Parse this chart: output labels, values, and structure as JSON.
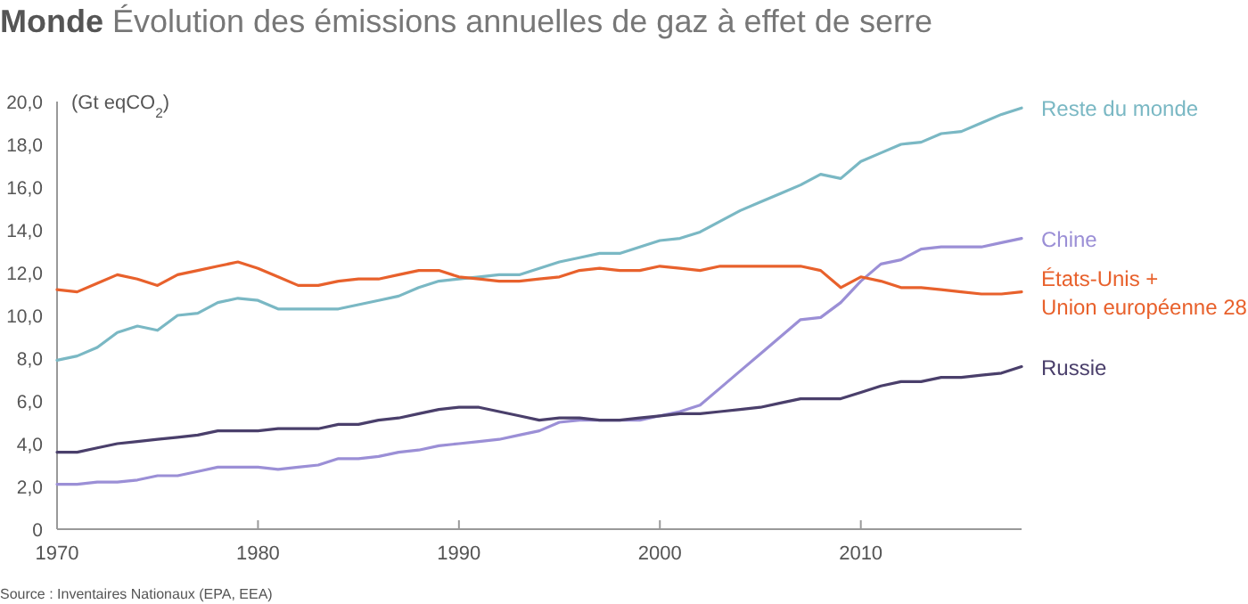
{
  "chart_data": {
    "type": "line",
    "title": "Monde Évolution des émissions annuelles de gaz à effet de serre",
    "ylabel": "(Gt eqCO$_{2}$)",
    "x": [
      1970,
      1971,
      1972,
      1973,
      1974,
      1975,
      1976,
      1977,
      1978,
      1979,
      1980,
      1981,
      1982,
      1983,
      1984,
      1985,
      1986,
      1987,
      1988,
      1989,
      1990,
      1991,
      1992,
      1993,
      1994,
      1995,
      1996,
      1997,
      1998,
      1999,
      2000,
      2001,
      2002,
      2003,
      2004,
      2005,
      2006,
      2007,
      2008,
      2009,
      2010,
      2011,
      2012,
      2013,
      2014,
      2015,
      2016,
      2017,
      2018
    ],
    "series": [
      {
        "name": "Reste du monde",
        "color": "#7ab8c4",
        "values": [
          7.9,
          8.1,
          8.5,
          9.2,
          9.5,
          9.3,
          10.0,
          10.1,
          10.6,
          10.8,
          10.7,
          10.3,
          10.3,
          10.3,
          10.3,
          10.5,
          10.7,
          10.9,
          11.3,
          11.6,
          11.7,
          11.8,
          11.9,
          11.9,
          12.2,
          12.5,
          12.7,
          12.9,
          12.9,
          13.2,
          13.5,
          13.6,
          13.9,
          14.4,
          14.9,
          15.3,
          15.7,
          16.1,
          16.6,
          16.4,
          17.2,
          17.6,
          18.0,
          18.1,
          18.5,
          18.6,
          19.0,
          19.4,
          19.7
        ]
      },
      {
        "name": "Chine",
        "color": "#9b8fd6",
        "values": [
          2.1,
          2.1,
          2.2,
          2.2,
          2.3,
          2.5,
          2.5,
          2.7,
          2.9,
          2.9,
          2.9,
          2.8,
          2.9,
          3.0,
          3.3,
          3.3,
          3.4,
          3.6,
          3.7,
          3.9,
          4.0,
          4.1,
          4.2,
          4.4,
          4.6,
          5.0,
          5.1,
          5.1,
          5.1,
          5.1,
          5.3,
          5.5,
          5.8,
          6.6,
          7.4,
          8.2,
          9.0,
          9.8,
          9.9,
          10.6,
          11.6,
          12.4,
          12.6,
          13.1,
          13.2,
          13.2,
          13.2,
          13.4,
          13.6
        ]
      },
      {
        "name": "États-Unis + Union européenne 28",
        "color": "#e8612c",
        "values": [
          11.2,
          11.1,
          11.5,
          11.9,
          11.7,
          11.4,
          11.9,
          12.1,
          12.3,
          12.5,
          12.2,
          11.8,
          11.4,
          11.4,
          11.6,
          11.7,
          11.7,
          11.9,
          12.1,
          12.1,
          11.8,
          11.7,
          11.6,
          11.6,
          11.7,
          11.8,
          12.1,
          12.2,
          12.1,
          12.1,
          12.3,
          12.2,
          12.1,
          12.3,
          12.3,
          12.3,
          12.3,
          12.3,
          12.1,
          11.3,
          11.8,
          11.6,
          11.3,
          11.3,
          11.2,
          11.1,
          11.0,
          11.0,
          11.1
        ]
      },
      {
        "name": "Russie",
        "color": "#4a3f6b",
        "values": [
          3.6,
          3.6,
          3.8,
          4.0,
          4.1,
          4.2,
          4.3,
          4.4,
          4.6,
          4.6,
          4.6,
          4.7,
          4.7,
          4.7,
          4.9,
          4.9,
          5.1,
          5.2,
          5.4,
          5.6,
          5.7,
          5.7,
          5.5,
          5.3,
          5.1,
          5.2,
          5.2,
          5.1,
          5.1,
          5.2,
          5.3,
          5.4,
          5.4,
          5.5,
          5.6,
          5.7,
          5.9,
          6.1,
          6.1,
          6.1,
          6.4,
          6.7,
          6.9,
          6.9,
          7.1,
          7.1,
          7.2,
          7.3,
          7.6
        ]
      }
    ],
    "xlim": [
      1970,
      2018
    ],
    "xticks": [
      1970,
      1980,
      1990,
      2000,
      2010
    ],
    "ylim": [
      0,
      20
    ],
    "yticks": [
      0,
      {
        "value": 2,
        "label": "2,0"
      },
      {
        "value": 4,
        "label": "4,0"
      },
      {
        "value": 6,
        "label": "6,0"
      },
      {
        "value": 8,
        "label": "8,0"
      },
      {
        "value": 10,
        "label": "10,0"
      },
      {
        "value": 12,
        "label": "12,0"
      },
      {
        "value": 14,
        "label": "14,0"
      },
      {
        "value": 16,
        "label": "16,0"
      },
      {
        "value": 18,
        "label": "18,0"
      },
      {
        "value": 20,
        "label": "20,0"
      }
    ],
    "grid": false,
    "legend": "right",
    "marker": "none",
    "line_style": "solid",
    "annotations": [
      "Source : Inventaires Nationaux (EPA, EEA)"
    ]
  }
}
